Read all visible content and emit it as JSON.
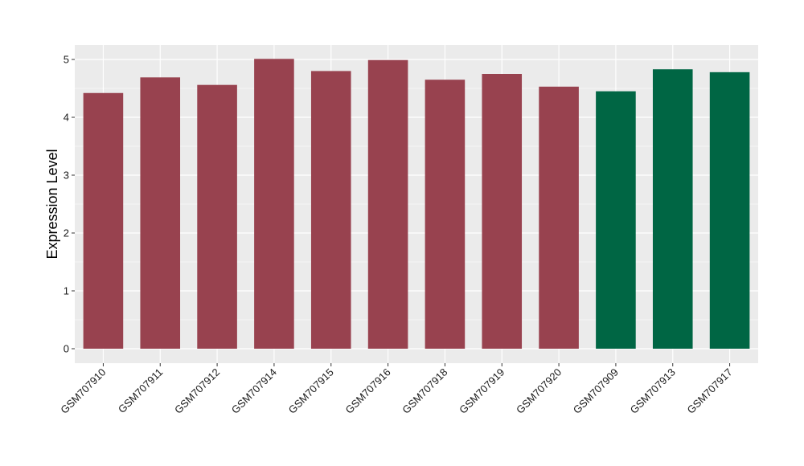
{
  "chart_data": {
    "type": "bar",
    "title": "",
    "xlabel": "",
    "ylabel": "Expression Level",
    "ylim": [
      -0.25,
      5.25
    ],
    "yticks": [
      0,
      1,
      2,
      3,
      4,
      5
    ],
    "grid": true,
    "legend": "none",
    "colors": {
      "group1": "#98424f",
      "group2": "#006644",
      "panel": "#ebebeb",
      "grid": "#ffffff"
    },
    "categories": [
      "GSM707910",
      "GSM707911",
      "GSM707912",
      "GSM707914",
      "GSM707915",
      "GSM707916",
      "GSM707918",
      "GSM707919",
      "GSM707920",
      "GSM707909",
      "GSM707913",
      "GSM707917"
    ],
    "values": [
      4.42,
      4.69,
      4.56,
      5.01,
      4.8,
      4.99,
      4.65,
      4.75,
      4.53,
      4.45,
      4.83,
      4.78
    ],
    "groups": [
      "group1",
      "group1",
      "group1",
      "group1",
      "group1",
      "group1",
      "group1",
      "group1",
      "group1",
      "group2",
      "group2",
      "group2"
    ]
  }
}
